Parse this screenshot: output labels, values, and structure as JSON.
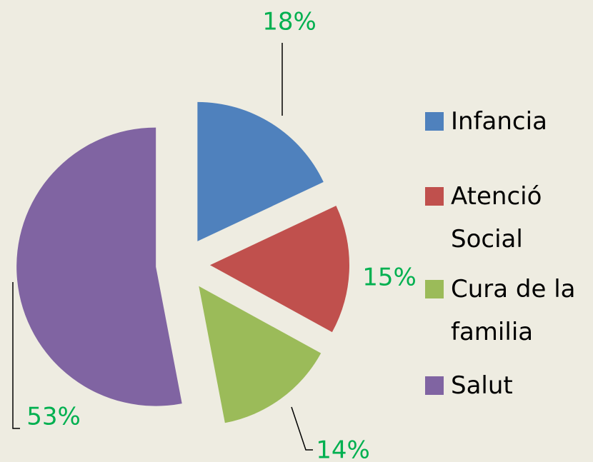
{
  "chart_data": {
    "type": "pie",
    "categories": [
      "Infancia",
      "Atenció Social",
      "Cura de la familia",
      "Salut"
    ],
    "values": [
      18,
      15,
      14,
      53
    ],
    "value_labels": [
      "18%",
      "15%",
      "14%",
      "53%"
    ],
    "colors": [
      "#4f81bd",
      "#c0504d",
      "#9bbb59",
      "#8064a2"
    ],
    "legend": "right"
  }
}
